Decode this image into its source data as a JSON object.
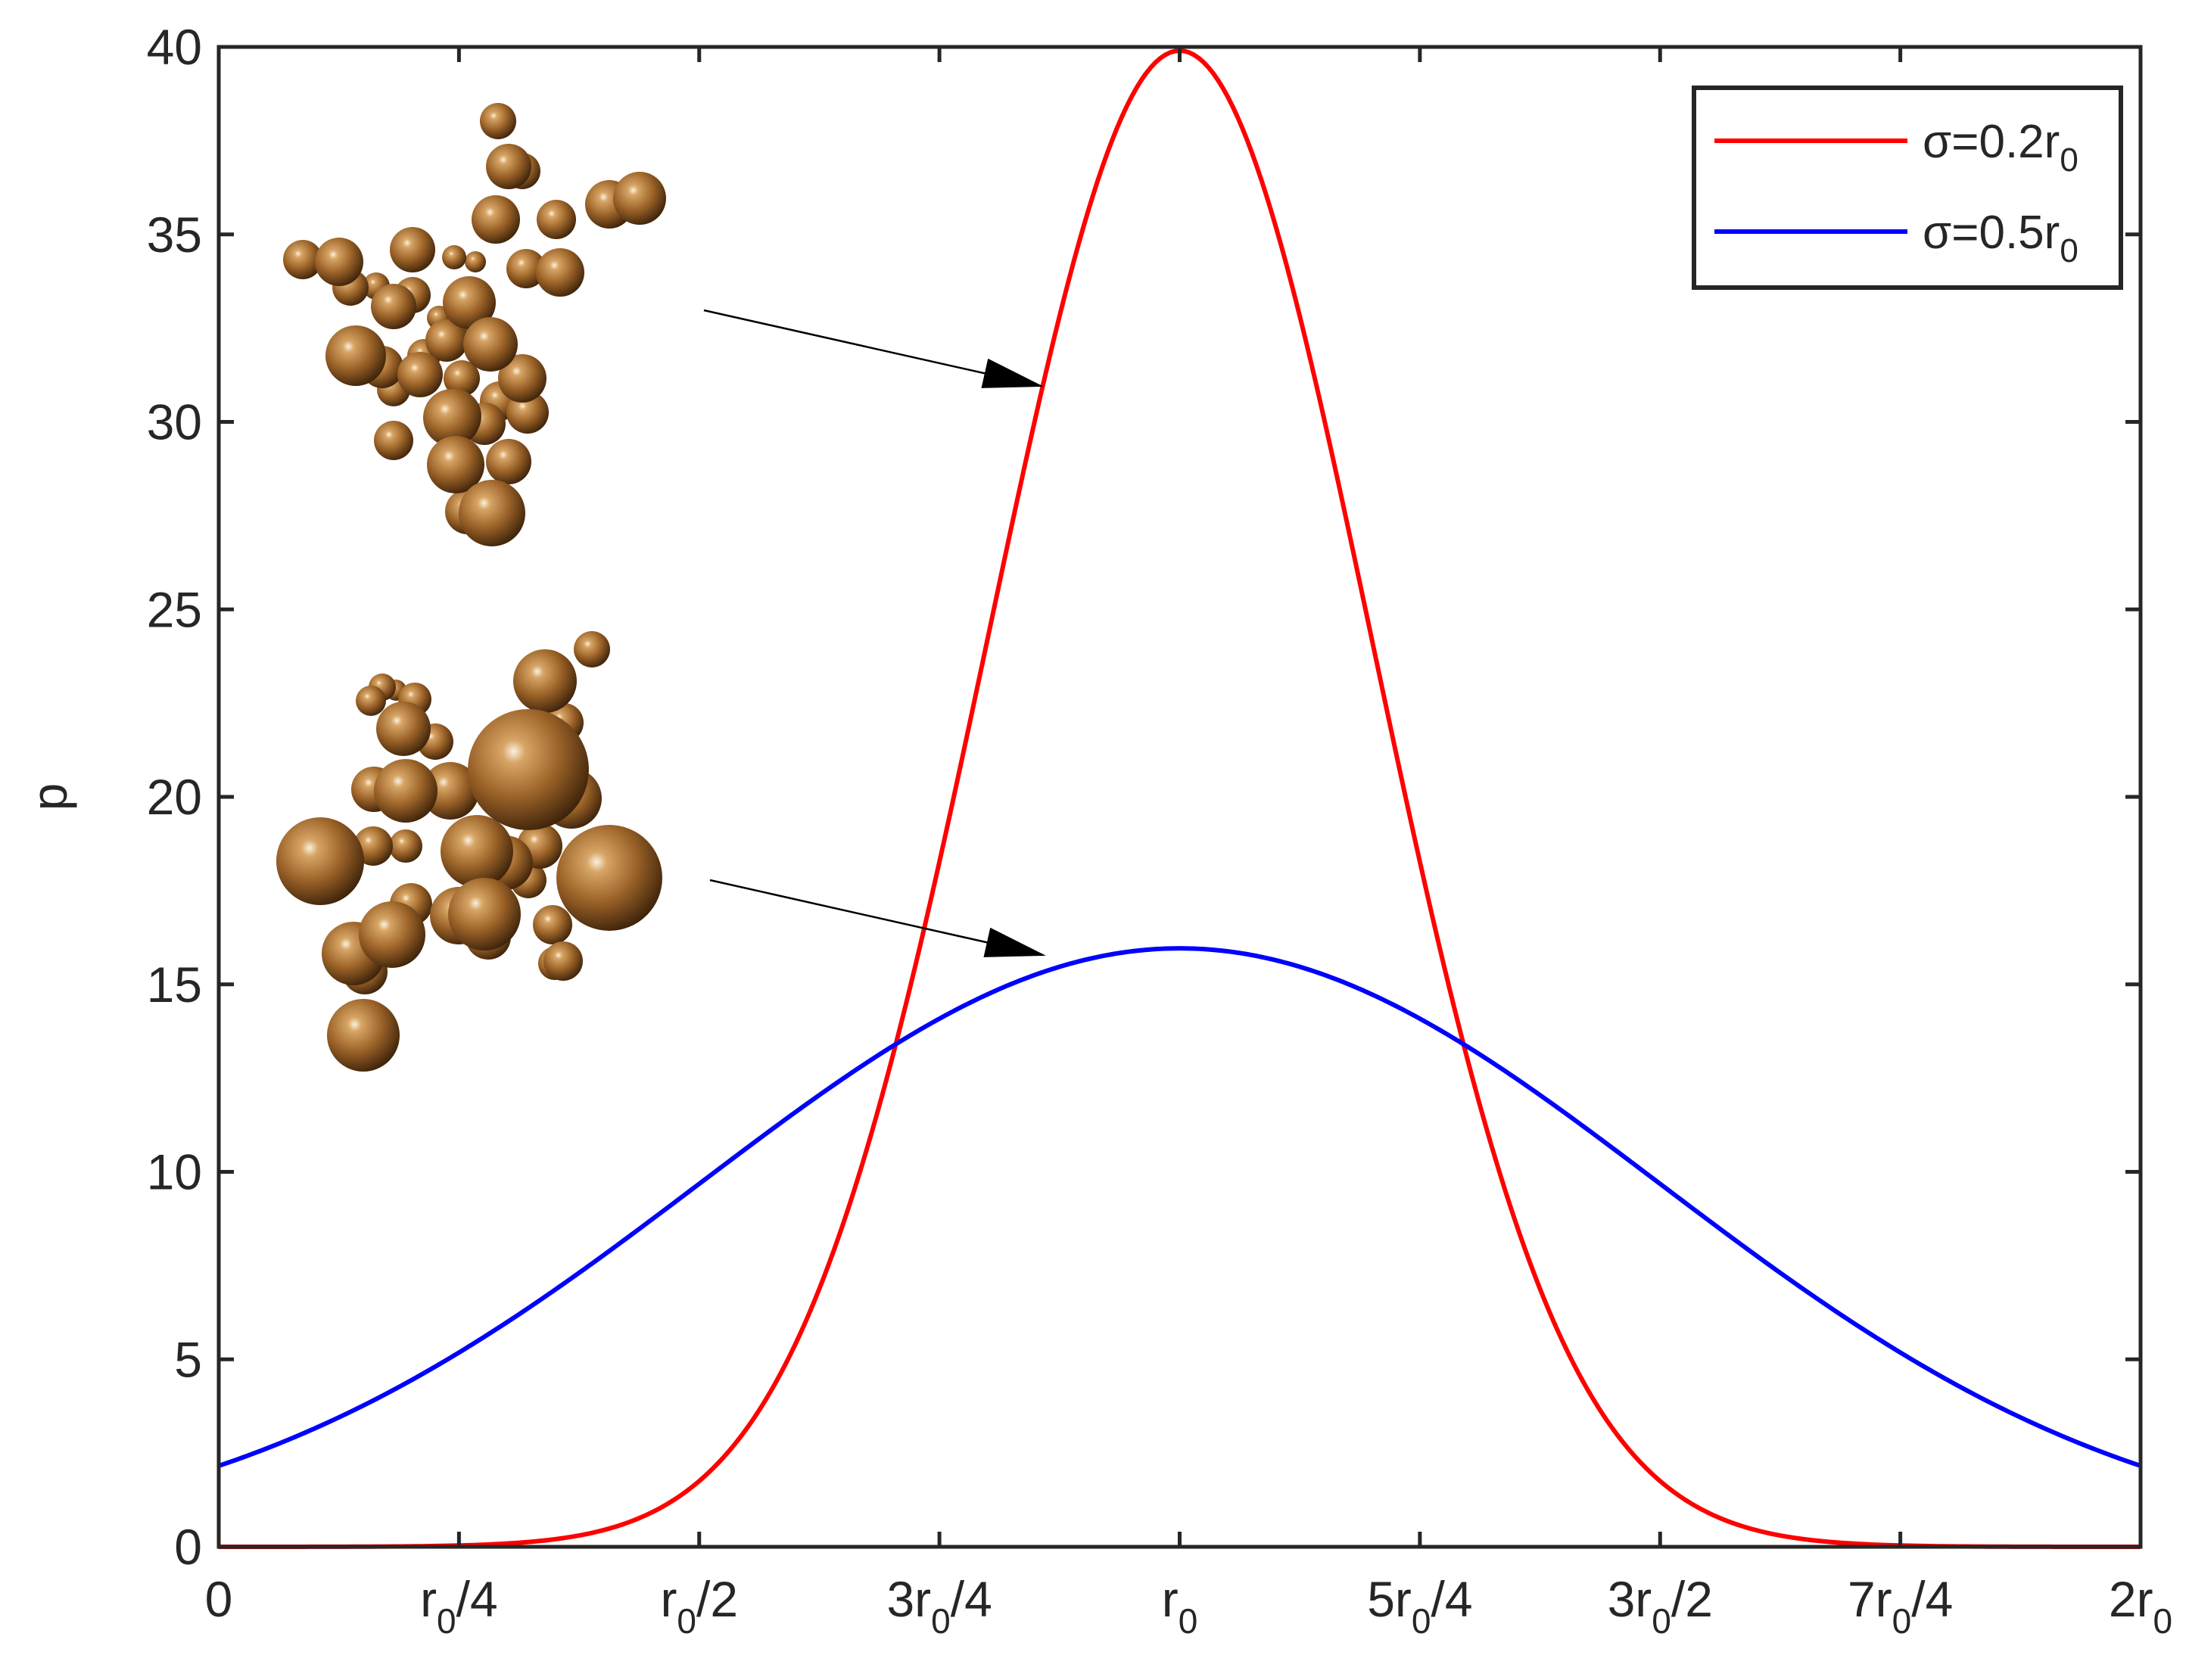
{
  "chart_data": {
    "type": "line",
    "title": "",
    "xlabel": "",
    "ylabel": "p",
    "xlim": [
      0,
      2
    ],
    "ylim": [
      0,
      40
    ],
    "grid": false,
    "legend_position": "top-right",
    "x_unit": "r0",
    "x_ticks": [
      {
        "value": 0,
        "label": "0",
        "sub": "",
        "suffix": ""
      },
      {
        "value": 0.25,
        "label": "r",
        "sub": "0",
        "suffix": "/4"
      },
      {
        "value": 0.5,
        "label": "r",
        "sub": "0",
        "suffix": "/2"
      },
      {
        "value": 0.75,
        "label": "3r",
        "sub": "0",
        "suffix": "/4"
      },
      {
        "value": 1.0,
        "label": "r",
        "sub": "0",
        "suffix": ""
      },
      {
        "value": 1.25,
        "label": "5r",
        "sub": "0",
        "suffix": "/4"
      },
      {
        "value": 1.5,
        "label": "3r",
        "sub": "0",
        "suffix": "/2"
      },
      {
        "value": 1.75,
        "label": "7r",
        "sub": "0",
        "suffix": "/4"
      },
      {
        "value": 2.0,
        "label": "2r",
        "sub": "0",
        "suffix": ""
      }
    ],
    "y_ticks": [
      0,
      5,
      10,
      15,
      20,
      25,
      30,
      35,
      40
    ],
    "y_tick_labels": [
      "0",
      "5",
      "10",
      "15",
      "20",
      "25",
      "30",
      "35",
      "40"
    ],
    "series": [
      {
        "name": "σ=0.2r",
        "name_sub": "0",
        "color": "#ff0000",
        "distribution": "gaussian",
        "mean": 1.0,
        "sigma": 0.2,
        "peak": 39.9,
        "x": [
          0,
          0.25,
          0.5,
          0.6,
          0.7,
          0.75,
          0.8,
          0.9,
          1.0,
          1.1,
          1.2,
          1.25,
          1.3,
          1.4,
          1.5,
          1.75,
          2.0
        ],
        "values": [
          0.0,
          0.0,
          1.75,
          5.4,
          12.9,
          18.3,
          24.2,
          35.2,
          39.9,
          35.2,
          24.2,
          18.3,
          12.9,
          5.4,
          1.75,
          0.0,
          0.0
        ]
      },
      {
        "name": "σ=0.5r",
        "name_sub": "0",
        "color": "#0000ff",
        "distribution": "gaussian",
        "mean": 1.0,
        "sigma": 0.5,
        "peak": 15.96,
        "x": [
          0,
          0.25,
          0.5,
          0.75,
          1.0,
          1.25,
          1.5,
          1.75,
          2.0
        ],
        "values": [
          2.16,
          5.18,
          9.68,
          14.08,
          15.96,
          14.08,
          9.68,
          5.18,
          2.16
        ]
      }
    ],
    "annotations": [
      {
        "type": "arrow-with-inset",
        "target_series": "σ=0.2r0",
        "target_x": 0.84,
        "target_y": 31.0,
        "inset": "particle-cluster-narrow"
      },
      {
        "type": "arrow-with-inset",
        "target_series": "σ=0.5r0",
        "target_x": 0.88,
        "target_y": 15.8,
        "inset": "particle-cluster-broad"
      }
    ]
  },
  "colors": {
    "axis": "#262626",
    "sphere_light": "#f2dfc4",
    "sphere_mid": "#b07a3e",
    "sphere_dark": "#4a2a0e"
  }
}
